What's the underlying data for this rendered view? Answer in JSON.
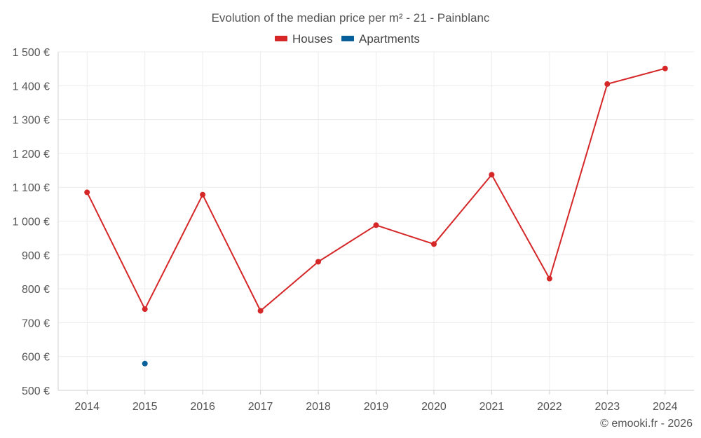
{
  "chart_data": {
    "type": "line",
    "title": "Evolution of the median price per m² - 21 - Painblanc",
    "categories": [
      "2014",
      "2015",
      "2016",
      "2017",
      "2018",
      "2019",
      "2020",
      "2021",
      "2022",
      "2023",
      "2024"
    ],
    "y_tick_labels": [
      "500 €",
      "600 €",
      "700 €",
      "800 €",
      "900 €",
      "1 000 €",
      "1 100 €",
      "1 200 €",
      "1 300 €",
      "1 400 €",
      "1 500 €"
    ],
    "ylim": [
      500,
      1500
    ],
    "xlabel": "",
    "ylabel": "",
    "grid": true,
    "legend_position": "top-center",
    "series": [
      {
        "name": "Houses",
        "color": "#d62728",
        "values": [
          1085,
          740,
          1078,
          735,
          880,
          988,
          932,
          1137,
          830,
          1405,
          1451
        ]
      },
      {
        "name": "Apartments",
        "color": "#08609a",
        "values": [
          null,
          579,
          null,
          null,
          null,
          null,
          null,
          null,
          null,
          null,
          null
        ]
      }
    ]
  },
  "footer": {
    "copyright": "© emooki.fr - 2026"
  }
}
